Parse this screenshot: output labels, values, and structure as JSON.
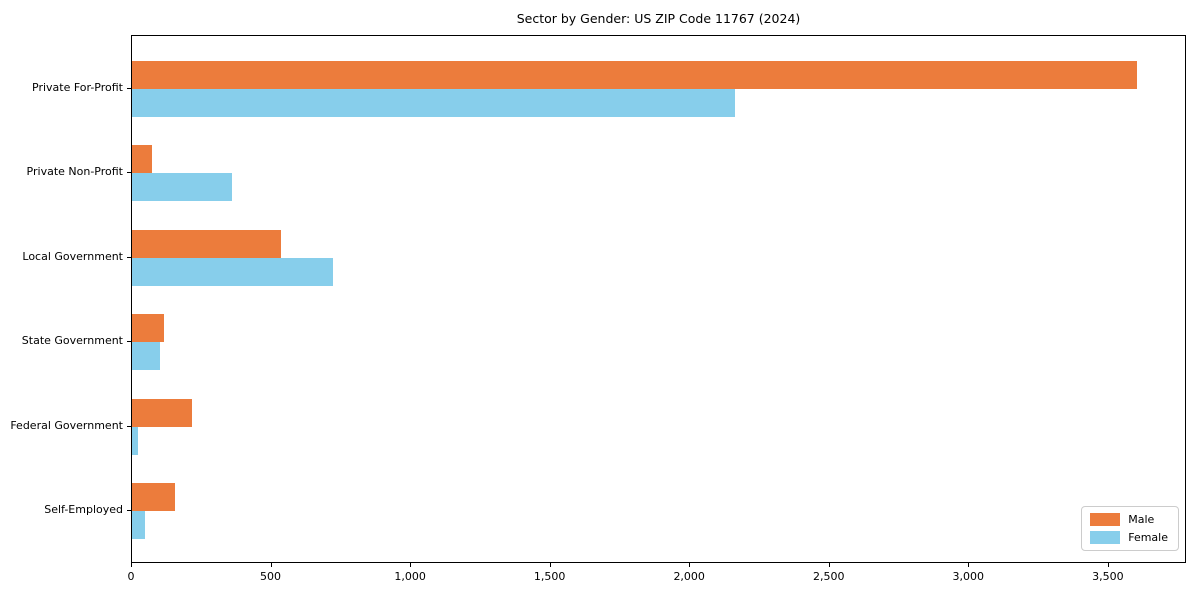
{
  "chart_data": {
    "type": "bar",
    "orientation": "horizontal",
    "title": "Sector by Gender: US ZIP Code 11767 (2024)",
    "categories": [
      "Private For-Profit",
      "Private Non-Profit",
      "Local Government",
      "State Government",
      "Federal Government",
      "Self-Employed"
    ],
    "series": [
      {
        "name": "Male",
        "color": "#EC7C3C",
        "values": [
          3600,
          70,
          535,
          115,
          215,
          155
        ]
      },
      {
        "name": "Female",
        "color": "#87CEEB",
        "values": [
          2160,
          360,
          720,
          100,
          22,
          48
        ]
      }
    ],
    "xlabel": "",
    "ylabel": "",
    "xlim": [
      0,
      3780
    ],
    "x_ticks": [
      0,
      500,
      1000,
      1500,
      2000,
      2500,
      3000,
      3500
    ],
    "x_tick_labels": [
      "0",
      "500",
      "1,000",
      "1,500",
      "2,000",
      "2,500",
      "3,000",
      "3,500"
    ],
    "grid": false,
    "legend": {
      "position": "lower right"
    }
  },
  "style": {
    "spine_color": "#000000",
    "text_color": "#000000",
    "legend_border_color": "#cccccc",
    "background": "#ffffff"
  }
}
